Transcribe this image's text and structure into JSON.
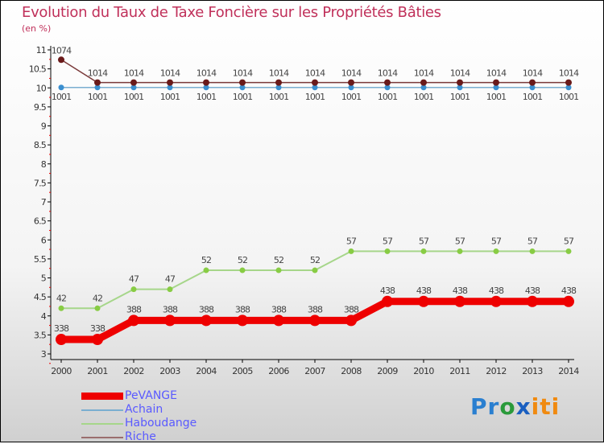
{
  "chart_data": {
    "type": "line",
    "title": "Evolution du Taux de Taxe Foncière sur les Propriétés Bâties",
    "ylabel": "(en %)",
    "xlabel": "",
    "ylim": [
      3,
      11
    ],
    "yticks": [
      "3",
      "3.5",
      "4",
      "4.5",
      "5",
      "5.5",
      "6",
      "6.5",
      "7",
      "7.5",
      "8",
      "8.5",
      "9",
      "9.5",
      "10",
      "10.5",
      "11"
    ],
    "x": [
      "2000",
      "2001",
      "2002",
      "2003",
      "2004",
      "2005",
      "2006",
      "2007",
      "2008",
      "2009",
      "2010",
      "2011",
      "2012",
      "2013",
      "2014"
    ],
    "series": [
      {
        "name": "PeVANGE",
        "color": "#ee0000",
        "values": [
          3.38,
          3.38,
          3.88,
          3.88,
          3.88,
          3.88,
          3.88,
          3.88,
          3.88,
          4.38,
          4.38,
          4.38,
          4.38,
          4.38,
          4.38
        ]
      },
      {
        "name": "Achain",
        "color": "#3a8fd0",
        "values": [
          10.01,
          10.01,
          10.01,
          10.01,
          10.01,
          10.01,
          10.01,
          10.01,
          10.01,
          10.01,
          10.01,
          10.01,
          10.01,
          10.01,
          10.01
        ]
      },
      {
        "name": "Haboudange",
        "color": "#88cc44",
        "values": [
          4.2,
          4.2,
          4.7,
          4.7,
          5.2,
          5.2,
          5.2,
          5.2,
          5.7,
          5.7,
          5.7,
          5.7,
          5.7,
          5.7,
          5.7
        ]
      },
      {
        "name": "Riche",
        "color": "#6a1a1a",
        "values": [
          10.74,
          10.14,
          10.14,
          10.14,
          10.14,
          10.14,
          10.14,
          10.14,
          10.14,
          10.14,
          10.14,
          10.14,
          10.14,
          10.14,
          10.14
        ]
      }
    ],
    "legend_position": "bottom-left"
  },
  "logo": {
    "text": "Proxiti"
  }
}
